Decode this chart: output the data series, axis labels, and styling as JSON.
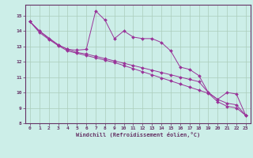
{
  "xlabel": "Windchill (Refroidissement éolien,°C)",
  "bg_color": "#cceee8",
  "grid_color": "#aaccbb",
  "line_color": "#993399",
  "spine_color": "#663366",
  "tick_color": "#663366",
  "xlim": [
    -0.5,
    23.5
  ],
  "ylim": [
    8,
    15.7
  ],
  "yticks": [
    8,
    9,
    10,
    11,
    12,
    13,
    14,
    15
  ],
  "xticks": [
    0,
    1,
    2,
    3,
    4,
    5,
    6,
    7,
    8,
    9,
    10,
    11,
    12,
    13,
    14,
    15,
    16,
    17,
    18,
    19,
    20,
    21,
    22,
    23
  ],
  "series1_x": [
    0,
    1,
    2,
    3,
    4,
    5,
    6,
    7,
    8,
    9,
    10,
    11,
    12,
    13,
    14,
    15,
    16,
    17,
    18,
    19,
    20,
    21,
    22,
    23
  ],
  "series1_y": [
    14.6,
    14.0,
    13.5,
    13.1,
    12.8,
    12.75,
    12.8,
    15.3,
    14.7,
    13.5,
    14.0,
    13.6,
    13.5,
    13.5,
    13.25,
    12.7,
    11.65,
    11.5,
    11.1,
    10.0,
    9.55,
    10.0,
    9.9,
    8.5
  ],
  "series2_x": [
    0,
    1,
    3,
    4,
    5,
    6,
    7,
    8,
    9,
    10,
    11,
    12,
    13,
    14,
    15,
    16,
    17,
    18,
    19,
    20,
    21,
    22,
    23
  ],
  "series2_y": [
    14.6,
    14.0,
    13.1,
    12.8,
    12.6,
    12.5,
    12.35,
    12.2,
    12.05,
    11.9,
    11.75,
    11.6,
    11.45,
    11.3,
    11.15,
    11.0,
    10.85,
    10.7,
    10.0,
    9.55,
    9.3,
    9.2,
    8.5
  ],
  "series3_x": [
    0,
    1,
    2,
    3,
    4,
    5,
    6,
    7,
    8,
    9,
    10,
    11,
    12,
    13,
    14,
    15,
    16,
    17,
    18,
    19,
    20,
    21,
    22,
    23
  ],
  "series3_y": [
    14.6,
    13.9,
    13.45,
    13.05,
    12.7,
    12.55,
    12.4,
    12.25,
    12.1,
    11.95,
    11.75,
    11.55,
    11.35,
    11.15,
    10.95,
    10.75,
    10.55,
    10.35,
    10.15,
    9.95,
    9.4,
    9.1,
    9.0,
    8.5
  ]
}
